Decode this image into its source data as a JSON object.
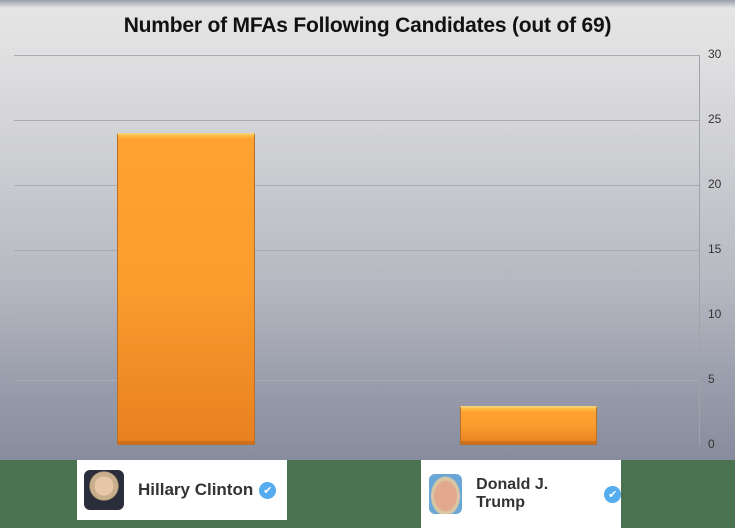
{
  "chart_data": {
    "type": "bar",
    "title": "Number of MFAs Following Candidates  (out of 69)",
    "categories": [
      "Hillary Clinton",
      "Donald J. Trump"
    ],
    "values": [
      24,
      3
    ],
    "xlabel": "",
    "ylabel": "",
    "ylim": [
      0,
      30
    ],
    "yticks": [
      0,
      5,
      10,
      15,
      20,
      25,
      30
    ],
    "yaxis_position": "right",
    "grid": true,
    "legend": null,
    "bar_color": "#fa9c2e"
  },
  "ticks": [
    "30",
    "25",
    "20",
    "15",
    "10",
    "5",
    "0"
  ],
  "labels": {
    "clinton": {
      "name": "Hillary Clinton",
      "verified": "✔"
    },
    "trump": {
      "name": "Donald J. Trump",
      "verified": "✔"
    }
  },
  "colors": {
    "band": "#4a7250",
    "bar": "#fa9c2e"
  }
}
